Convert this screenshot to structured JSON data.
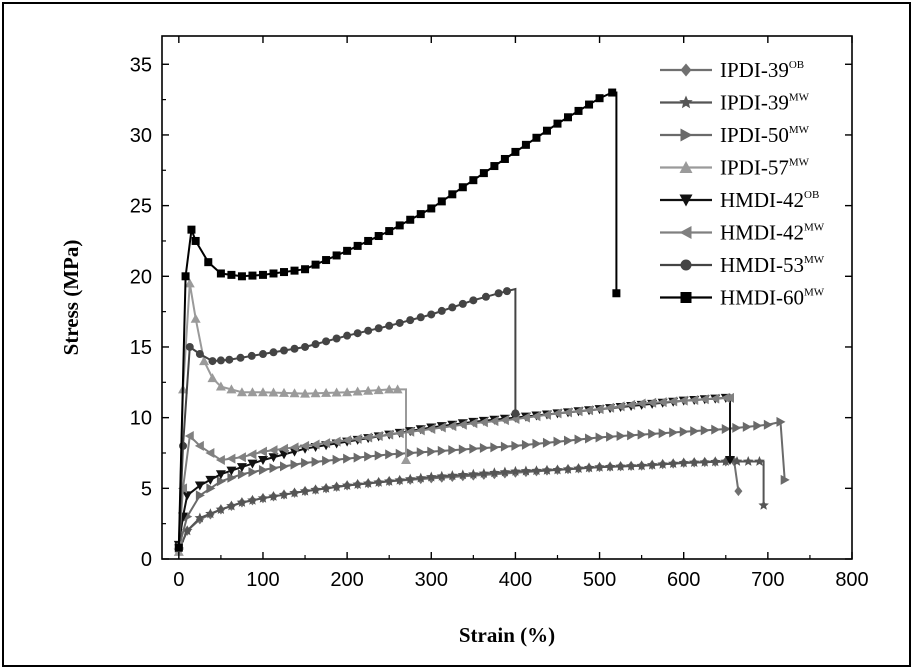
{
  "chart_data": {
    "type": "line",
    "xlabel": "Strain (%)",
    "ylabel": "Stress (MPa)",
    "xlim": [
      -20,
      800
    ],
    "ylim": [
      0,
      37
    ],
    "xticks": [
      0,
      100,
      200,
      300,
      400,
      500,
      600,
      700,
      800
    ],
    "yticks": [
      0,
      5,
      10,
      15,
      20,
      25,
      30,
      35
    ],
    "legend_position": "top-right",
    "grid": false,
    "series": [
      {
        "name": "IPDI-39",
        "sup": "OB",
        "marker": "diamond",
        "color": "#707070",
        "x": [
          0,
          10,
          25,
          50,
          75,
          100,
          150,
          200,
          250,
          300,
          350,
          400,
          450,
          500,
          550,
          600,
          650,
          660,
          665
        ],
        "y": [
          0.6,
          2.0,
          2.8,
          3.5,
          4.0,
          4.3,
          4.8,
          5.2,
          5.5,
          5.7,
          5.9,
          6.1,
          6.3,
          6.5,
          6.6,
          6.8,
          6.9,
          6.9,
          4.8
        ]
      },
      {
        "name": "IPDI-39",
        "sup": "MW",
        "marker": "star",
        "color": "#555555",
        "x": [
          0,
          10,
          25,
          50,
          75,
          100,
          150,
          200,
          250,
          300,
          350,
          400,
          450,
          500,
          550,
          600,
          650,
          690,
          695,
          695
        ],
        "y": [
          0.6,
          2.0,
          2.9,
          3.5,
          4.0,
          4.3,
          4.8,
          5.2,
          5.5,
          5.8,
          6.0,
          6.2,
          6.3,
          6.5,
          6.6,
          6.8,
          6.9,
          6.9,
          6.9,
          3.8
        ]
      },
      {
        "name": "IPDI-50",
        "sup": "MW",
        "marker": "triangle-right",
        "color": "#6a6a6a",
        "x": [
          0,
          10,
          25,
          50,
          75,
          100,
          150,
          200,
          250,
          300,
          350,
          400,
          450,
          500,
          550,
          600,
          650,
          700,
          715,
          720
        ],
        "y": [
          0.8,
          3.0,
          4.5,
          5.5,
          6.0,
          6.3,
          6.8,
          7.1,
          7.4,
          7.6,
          7.8,
          8.0,
          8.3,
          8.6,
          8.8,
          9.0,
          9.2,
          9.5,
          9.7,
          5.6
        ]
      },
      {
        "name": "IPDI-57",
        "sup": "MW",
        "marker": "triangle-up",
        "color": "#9a9a9a",
        "x": [
          0,
          5,
          13,
          20,
          30,
          40,
          50,
          75,
          100,
          150,
          200,
          250,
          270,
          270
        ],
        "y": [
          0.5,
          12.0,
          19.5,
          17.0,
          14.0,
          12.8,
          12.2,
          11.8,
          11.8,
          11.7,
          11.8,
          12.0,
          12.0,
          7.0
        ]
      },
      {
        "name": "HMDI-42",
        "sup": "OB",
        "marker": "triangle-down",
        "color": "#111111",
        "x": [
          0,
          5,
          10,
          25,
          50,
          75,
          100,
          150,
          200,
          250,
          300,
          350,
          400,
          450,
          500,
          550,
          600,
          650,
          655,
          655
        ],
        "y": [
          1.0,
          3.0,
          4.5,
          5.2,
          6.0,
          6.5,
          7.0,
          7.8,
          8.3,
          8.8,
          9.3,
          9.7,
          10.0,
          10.3,
          10.6,
          10.9,
          11.2,
          11.4,
          11.4,
          7.0
        ]
      },
      {
        "name": "HMDI-42",
        "sup": "MW",
        "marker": "triangle-left",
        "color": "#808080",
        "x": [
          0,
          5,
          13,
          25,
          50,
          75,
          100,
          150,
          200,
          250,
          300,
          350,
          400,
          450,
          500,
          550,
          600,
          650,
          655
        ],
        "y": [
          1.0,
          5.0,
          8.7,
          8.0,
          7.0,
          7.2,
          7.6,
          8.0,
          8.4,
          8.8,
          9.2,
          9.6,
          9.9,
          10.3,
          10.6,
          11.0,
          11.2,
          11.4,
          11.4
        ]
      },
      {
        "name": "HMDI-53",
        "sup": "MW",
        "marker": "circle",
        "color": "#444444",
        "x": [
          0,
          5,
          13,
          25,
          40,
          60,
          100,
          150,
          200,
          250,
          300,
          350,
          380,
          400,
          400
        ],
        "y": [
          0.8,
          8.0,
          15.0,
          14.5,
          14.0,
          14.1,
          14.5,
          15.0,
          15.8,
          16.5,
          17.3,
          18.3,
          18.8,
          19.1,
          10.3
        ]
      },
      {
        "name": "HMDI-60",
        "sup": "MW",
        "marker": "square",
        "color": "#000000",
        "x": [
          0,
          8,
          15,
          20,
          35,
          50,
          75,
          100,
          150,
          200,
          250,
          300,
          350,
          400,
          450,
          500,
          515,
          520,
          520
        ],
        "y": [
          0.8,
          20.0,
          23.3,
          22.5,
          21.0,
          20.2,
          20.0,
          20.1,
          20.5,
          21.8,
          23.2,
          24.8,
          26.8,
          28.8,
          30.8,
          32.6,
          33.0,
          33.0,
          18.8
        ]
      }
    ]
  }
}
